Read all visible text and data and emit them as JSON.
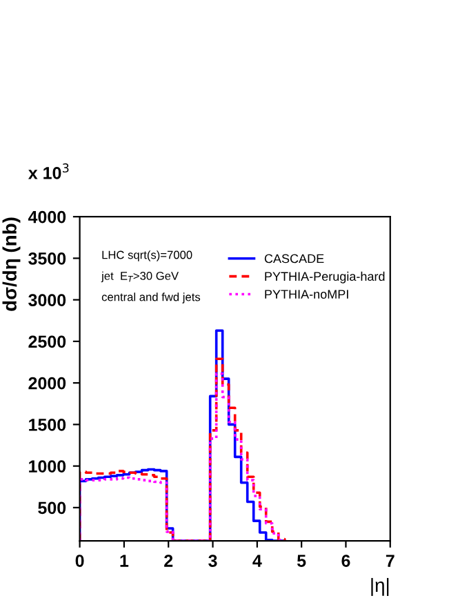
{
  "chart_data": {
    "type": "histogram",
    "xlabel": "|η|",
    "ylabel": "dσ/dη (nb)",
    "bins": [
      0,
      0.14,
      0.28,
      0.42,
      0.56,
      0.7,
      0.84,
      0.98,
      1.12,
      1.26,
      1.4,
      1.54,
      1.68,
      1.82,
      1.96,
      2.1,
      2.24,
      2.38,
      2.52,
      2.66,
      2.8,
      2.94,
      3.08,
      3.22,
      3.36,
      3.5,
      3.64,
      3.78,
      3.92,
      4.06,
      4.2,
      4.34,
      4.48,
      4.62
    ],
    "series": [
      {
        "name": "CASCADE",
        "color": "#0000ff",
        "line_style": "solid",
        "values": [
          820,
          840,
          850,
          860,
          870,
          880,
          890,
          900,
          920,
          930,
          950,
          960,
          950,
          940,
          250,
          100,
          100,
          100,
          100,
          100,
          100,
          1840,
          2630,
          2050,
          1500,
          1110,
          800,
          570,
          340,
          200,
          110,
          100,
          100
        ]
      },
      {
        "name": "PYTHIA-Perugia-hard",
        "color": "#ff0000",
        "line_style": "dashed",
        "values": [
          930,
          920,
          910,
          910,
          910,
          920,
          940,
          930,
          920,
          910,
          900,
          890,
          870,
          850,
          200,
          100,
          100,
          100,
          100,
          100,
          100,
          1430,
          2290,
          1980,
          1700,
          1430,
          1160,
          870,
          680,
          510,
          330,
          210,
          120
        ]
      },
      {
        "name": "PYTHIA-noMPI",
        "color": "#ff00ff",
        "line_style": "dotted",
        "values": [
          840,
          830,
          830,
          830,
          840,
          840,
          850,
          860,
          850,
          840,
          830,
          820,
          810,
          800,
          210,
          100,
          100,
          100,
          100,
          100,
          100,
          1330,
          2110,
          1830,
          1530,
          1320,
          1080,
          830,
          640,
          480,
          310,
          190,
          110
        ]
      }
    ],
    "xlim": [
      0,
      7
    ],
    "ylim": [
      100,
      4000
    ],
    "xticks": [
      0,
      1,
      2,
      3,
      4,
      5,
      6,
      7
    ],
    "yticks": [
      500,
      1000,
      1500,
      2000,
      2500,
      3000,
      3500,
      4000
    ],
    "legend": "top right",
    "grid": false,
    "annotations": [
      "x 10$^{3}$",
      "LHC sqrt(s)=7000",
      "jet  E$_{T}$>30 GeV",
      "central and fwd jets"
    ]
  }
}
